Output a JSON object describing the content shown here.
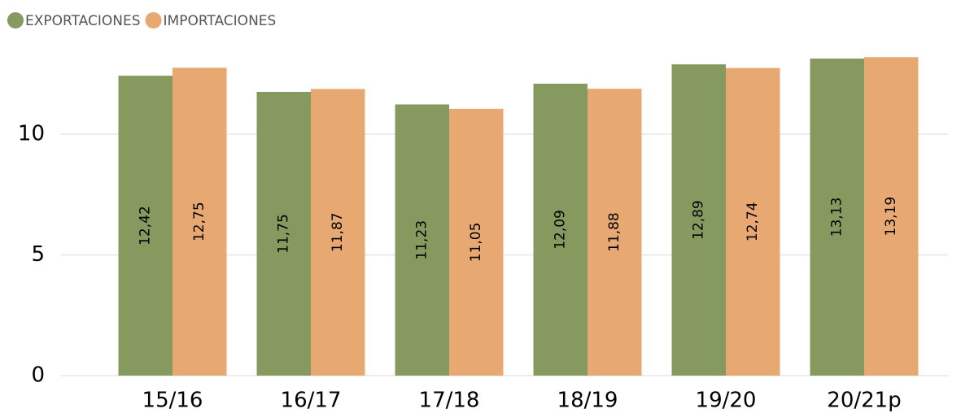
{
  "chart_data": {
    "type": "bar",
    "categories": [
      "15/16",
      "16/17",
      "17/18",
      "18/19",
      "19/20",
      "20/21p"
    ],
    "series": [
      {
        "name": "EXPORTACIONES",
        "color": "#86995f",
        "values": [
          12.42,
          11.75,
          11.23,
          12.09,
          12.89,
          13.13
        ],
        "value_labels": [
          "12,42",
          "11,75",
          "11,23",
          "12,09",
          "12,89",
          "13,13"
        ]
      },
      {
        "name": "IMPORTACIONES",
        "color": "#e8a872",
        "values": [
          12.75,
          11.87,
          11.05,
          11.88,
          12.74,
          13.19
        ],
        "value_labels": [
          "12,75",
          "11,87",
          "11,05",
          "11,88",
          "12,74",
          "13,19"
        ]
      }
    ],
    "ylim": [
      0,
      13.5
    ],
    "yticks": [
      0,
      5,
      10
    ],
    "grid": true,
    "legend": "top-left"
  }
}
